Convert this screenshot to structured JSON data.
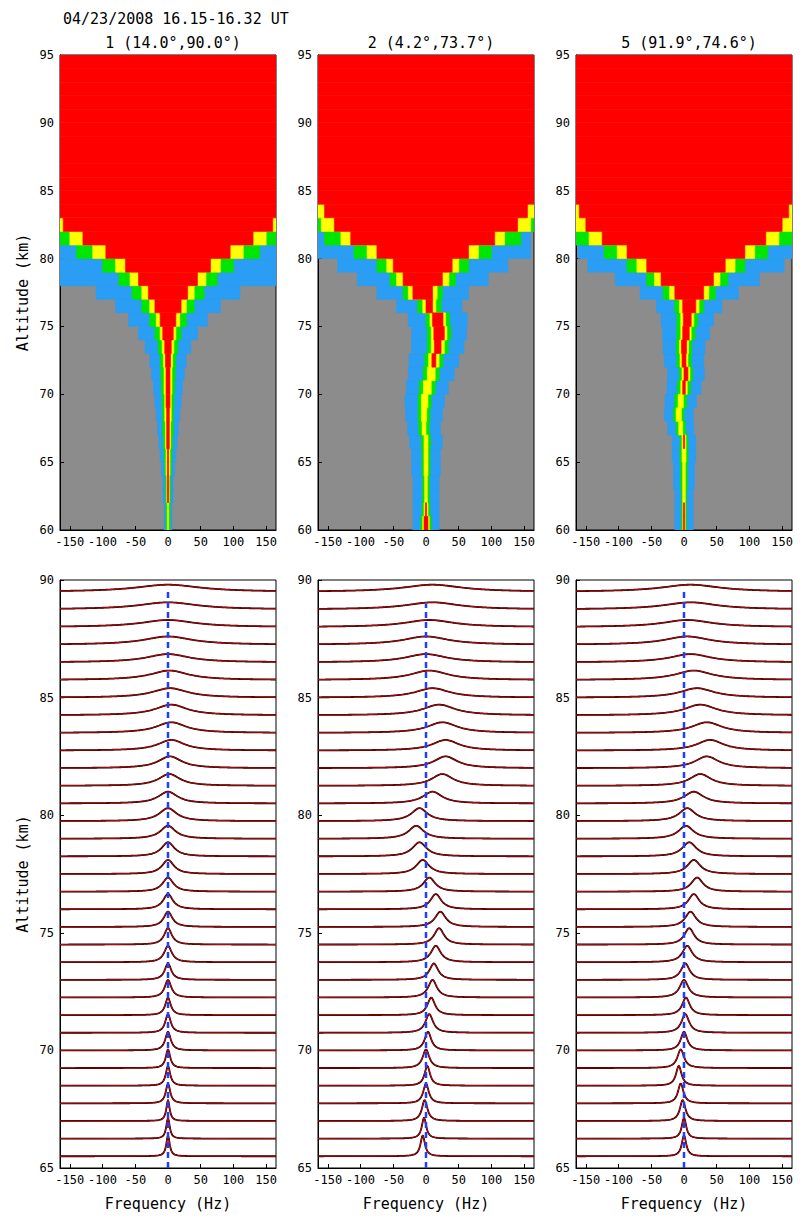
{
  "title": "04/23/2008 16.15-16.32 UT",
  "chart_data": [
    {
      "type": "heatmap",
      "title": "1 (14.0°,90.0°)",
      "ylabel": "Altitude (km)",
      "xlim": [
        -165,
        165
      ],
      "xticks": [
        -150,
        -100,
        -50,
        0,
        50,
        100,
        150
      ],
      "ylim": [
        60,
        95
      ],
      "yticks": [
        60,
        65,
        70,
        75,
        80,
        85,
        90,
        95
      ],
      "color": "#8c8c8c",
      "altitudes": [
        60.5,
        61.5,
        62.5,
        63.5,
        64.5,
        65.5,
        66.5,
        67.5,
        68.5,
        69.5,
        70.5,
        71.5,
        72.5,
        73.5,
        74.5,
        75.5,
        76.5,
        77.5,
        78.5,
        79.5,
        80.5,
        81.5,
        82.5,
        83.5,
        84.5,
        85.5,
        86.5,
        87.5,
        88.5,
        89.5,
        90.5,
        91.5,
        92.5,
        93.5,
        94.5
      ],
      "center": [
        0,
        0,
        0,
        0,
        0,
        0,
        0,
        0,
        0,
        0,
        0,
        0,
        0,
        0,
        0,
        0,
        0,
        0,
        0,
        0,
        0,
        0,
        0,
        0,
        0,
        0,
        0,
        0,
        0,
        0,
        0,
        0,
        0,
        0,
        0
      ],
      "bands": [
        {
          "color": "#2a9df4",
          "halfwidth": [
            6,
            6,
            8,
            8,
            10,
            12,
            14,
            16,
            18,
            20,
            22,
            25,
            28,
            35,
            45,
            60,
            80,
            110,
            165,
            165,
            165,
            165,
            165,
            165,
            165,
            165,
            165,
            165,
            165,
            165,
            165,
            165,
            165,
            165,
            165
          ]
        },
        {
          "color": "#00e600",
          "halfwidth": [
            3,
            3,
            4,
            4,
            5,
            6,
            7,
            8,
            8,
            9,
            10,
            11,
            12,
            15,
            20,
            28,
            40,
            55,
            75,
            100,
            140,
            165,
            165,
            165,
            165,
            165,
            165,
            165,
            165,
            165,
            165,
            165,
            165,
            165,
            165
          ]
        },
        {
          "color": "#ffff00",
          "halfwidth": [
            1,
            1,
            2,
            2,
            3,
            3,
            4,
            4,
            5,
            5,
            6,
            6,
            7,
            9,
            12,
            18,
            28,
            40,
            58,
            80,
            115,
            150,
            165,
            165,
            165,
            165,
            165,
            165,
            165,
            165,
            165,
            165,
            165,
            165,
            165
          ]
        },
        {
          "color": "#ff0000",
          "halfwidth": [
            0,
            0,
            1,
            1,
            1,
            1,
            2,
            2,
            2,
            3,
            3,
            3,
            4,
            5,
            8,
            12,
            20,
            30,
            45,
            65,
            95,
            130,
            160,
            165,
            165,
            165,
            165,
            165,
            165,
            165,
            165,
            165,
            165,
            165,
            165
          ]
        }
      ]
    },
    {
      "type": "heatmap",
      "title": "2 (4.2°,73.7°)",
      "xlim": [
        -165,
        165
      ],
      "xticks": [
        -150,
        -100,
        -50,
        0,
        50,
        100,
        150
      ],
      "ylim": [
        60,
        95
      ],
      "yticks": [
        60,
        65,
        70,
        75,
        80,
        85,
        90,
        95
      ],
      "color": "#8c8c8c",
      "altitudes": [
        60.5,
        61.5,
        62.5,
        63.5,
        64.5,
        65.5,
        66.5,
        67.5,
        68.5,
        69.5,
        70.5,
        71.5,
        72.5,
        73.5,
        74.5,
        75.5,
        76.5,
        77.5,
        78.5,
        79.5,
        80.5,
        81.5,
        82.5,
        83.5,
        84.5,
        85.5,
        86.5,
        87.5,
        88.5,
        89.5,
        90.5,
        91.5,
        92.5,
        93.5,
        94.5
      ],
      "center": [
        0,
        0,
        0,
        0,
        0,
        0,
        0,
        -3,
        -3,
        -2,
        2,
        8,
        12,
        18,
        20,
        18,
        5,
        -5,
        -5,
        -5,
        -5,
        -5,
        0,
        0,
        0,
        0,
        0,
        0,
        0,
        0,
        0,
        0,
        0,
        0,
        0
      ],
      "bands": [
        {
          "color": "#2a9df4",
          "halfwidth": [
            20,
            20,
            20,
            20,
            22,
            22,
            25,
            25,
            28,
            30,
            32,
            35,
            38,
            40,
            42,
            45,
            50,
            70,
            100,
            130,
            165,
            165,
            165,
            165,
            165,
            165,
            165,
            165,
            165,
            165,
            165,
            165,
            165,
            165,
            165
          ]
        },
        {
          "color": "#00e600",
          "halfwidth": [
            8,
            6,
            5,
            5,
            6,
            6,
            7,
            8,
            9,
            10,
            12,
            12,
            14,
            16,
            18,
            18,
            18,
            30,
            50,
            70,
            105,
            150,
            165,
            165,
            165,
            165,
            165,
            165,
            165,
            165,
            165,
            165,
            165,
            165,
            165
          ]
        },
        {
          "color": "#ffff00",
          "halfwidth": [
            5,
            3,
            2,
            2,
            3,
            3,
            3,
            3,
            4,
            5,
            6,
            6,
            8,
            10,
            12,
            12,
            10,
            22,
            40,
            55,
            85,
            125,
            160,
            165,
            165,
            165,
            165,
            165,
            165,
            165,
            165,
            165,
            165,
            165,
            165
          ]
        },
        {
          "color": "#ff0000",
          "halfwidth": [
            3,
            1,
            0,
            0,
            0,
            0,
            0,
            0,
            0,
            0,
            0,
            0,
            3,
            5,
            8,
            8,
            5,
            15,
            30,
            45,
            70,
            110,
            140,
            155,
            165,
            165,
            165,
            165,
            165,
            165,
            165,
            165,
            165,
            165,
            165
          ]
        }
      ]
    },
    {
      "type": "heatmap",
      "title": "5 (91.9°,74.6°)",
      "xlim": [
        -165,
        165
      ],
      "xticks": [
        -150,
        -100,
        -50,
        0,
        50,
        100,
        150
      ],
      "ylim": [
        60,
        95
      ],
      "yticks": [
        60,
        65,
        70,
        75,
        80,
        85,
        90,
        95
      ],
      "color": "#8c8c8c",
      "altitudes": [
        60.5,
        61.5,
        62.5,
        63.5,
        64.5,
        65.5,
        66.5,
        67.5,
        68.5,
        69.5,
        70.5,
        71.5,
        72.5,
        73.5,
        74.5,
        75.5,
        76.5,
        77.5,
        78.5,
        79.5,
        80.5,
        81.5,
        82.5,
        83.5,
        84.5,
        85.5,
        86.5,
        87.5,
        88.5,
        89.5,
        90.5,
        91.5,
        92.5,
        93.5,
        94.5
      ],
      "center": [
        0,
        0,
        0,
        0,
        0,
        0,
        0,
        -5,
        -8,
        -5,
        0,
        3,
        0,
        0,
        3,
        5,
        8,
        8,
        5,
        3,
        3,
        0,
        0,
        0,
        0,
        0,
        0,
        0,
        0,
        0,
        0,
        0,
        0,
        0,
        0
      ],
      "bands": [
        {
          "color": "#2a9df4",
          "halfwidth": [
            14,
            14,
            14,
            16,
            16,
            18,
            18,
            20,
            22,
            24,
            26,
            28,
            30,
            32,
            36,
            40,
            50,
            75,
            110,
            150,
            165,
            165,
            165,
            165,
            165,
            165,
            165,
            165,
            165,
            165,
            165,
            165,
            165,
            165,
            165
          ]
        },
        {
          "color": "#00e600",
          "halfwidth": [
            4,
            4,
            4,
            5,
            5,
            6,
            6,
            7,
            8,
            9,
            10,
            10,
            11,
            12,
            14,
            16,
            22,
            40,
            62,
            90,
            125,
            165,
            165,
            165,
            165,
            165,
            165,
            165,
            165,
            165,
            165,
            165,
            165,
            165,
            165
          ]
        },
        {
          "color": "#ffff00",
          "halfwidth": [
            2,
            2,
            2,
            2,
            2,
            3,
            3,
            3,
            4,
            4,
            5,
            6,
            6,
            7,
            8,
            10,
            15,
            30,
            50,
            75,
            105,
            145,
            165,
            165,
            165,
            165,
            165,
            165,
            165,
            165,
            165,
            165,
            165,
            165,
            165
          ]
        },
        {
          "color": "#ff0000",
          "halfwidth": [
            1,
            1,
            0,
            0,
            0,
            0,
            1,
            0,
            0,
            0,
            2,
            3,
            3,
            4,
            5,
            6,
            10,
            22,
            40,
            60,
            90,
            125,
            150,
            160,
            165,
            165,
            165,
            165,
            165,
            165,
            165,
            165,
            165,
            165,
            165
          ]
        }
      ]
    },
    {
      "type": "line",
      "ylabel": "Altitude (km)",
      "xlabel": "Frequency (Hz)",
      "xlim": [
        -165,
        165
      ],
      "xticks": [
        -150,
        -100,
        -50,
        0,
        50,
        100,
        150
      ],
      "ylim": [
        65,
        90
      ],
      "yticks": [
        65,
        70,
        75,
        80,
        85,
        90
      ],
      "color": "#e00000",
      "altitudes": [
        65.5,
        66.25,
        67,
        67.75,
        68.5,
        69.25,
        70,
        70.75,
        71.5,
        72.25,
        73,
        73.75,
        74.5,
        75.25,
        76,
        76.75,
        77.5,
        78.25,
        79,
        79.75,
        80.5,
        81.25,
        82,
        82.75,
        83.5,
        84.25,
        85,
        85.75,
        86.5,
        87.25,
        88,
        88.75,
        89.5
      ],
      "doppler": [
        0,
        0,
        0,
        0,
        0,
        0,
        0,
        0,
        0,
        0,
        0,
        0,
        0,
        0,
        0,
        0,
        0,
        0,
        0,
        0,
        0,
        2,
        3,
        5,
        5,
        5,
        3,
        2,
        0,
        0,
        0,
        0,
        0
      ],
      "width": [
        3,
        3,
        3,
        4,
        4,
        4,
        5,
        5,
        5,
        6,
        6,
        7,
        7,
        8,
        9,
        10,
        11,
        12,
        14,
        16,
        18,
        20,
        22,
        25,
        28,
        30,
        33,
        36,
        40,
        45,
        50,
        55,
        60
      ],
      "peak": [
        0.9,
        0.9,
        0.9,
        0.85,
        0.85,
        0.8,
        0.8,
        0.8,
        0.75,
        0.75,
        0.7,
        0.7,
        0.7,
        0.65,
        0.65,
        0.6,
        0.6,
        0.6,
        0.55,
        0.55,
        0.5,
        0.5,
        0.5,
        0.45,
        0.45,
        0.45,
        0.4,
        0.4,
        0.35,
        0.35,
        0.3,
        0.3,
        0.3
      ],
      "reference_line": {
        "x": 0,
        "y": [
          65,
          89.5
        ],
        "color": "#1f3fff",
        "line_style": "dashed"
      }
    },
    {
      "type": "line",
      "xlabel": "Frequency (Hz)",
      "xlim": [
        -165,
        165
      ],
      "xticks": [
        -150,
        -100,
        -50,
        0,
        50,
        100,
        150
      ],
      "ylim": [
        65,
        90
      ],
      "yticks": [
        65,
        70,
        75,
        80,
        85,
        90
      ],
      "color": "#e00000",
      "altitudes": [
        65.5,
        66.25,
        67,
        67.75,
        68.5,
        69.25,
        70,
        70.75,
        71.5,
        72.25,
        73,
        73.75,
        74.5,
        75.25,
        76,
        76.75,
        77.5,
        78.25,
        79,
        79.75,
        80.5,
        81.25,
        82,
        82.75,
        83.5,
        84.25,
        85,
        85.75,
        86.5,
        87.25,
        88,
        88.75,
        89.5
      ],
      "doppler": [
        -5,
        -3,
        -2,
        0,
        2,
        0,
        3,
        5,
        8,
        10,
        12,
        15,
        20,
        22,
        15,
        5,
        -5,
        -10,
        -15,
        -10,
        10,
        25,
        30,
        30,
        25,
        20,
        10,
        5,
        0,
        0,
        5,
        10,
        10
      ],
      "width": [
        4,
        4,
        5,
        5,
        5,
        6,
        6,
        7,
        7,
        8,
        8,
        9,
        9,
        10,
        10,
        11,
        12,
        13,
        14,
        15,
        18,
        20,
        22,
        25,
        28,
        30,
        32,
        35,
        38,
        42,
        46,
        50,
        55
      ],
      "peak": [
        0.9,
        0.9,
        0.9,
        0.85,
        0.85,
        0.8,
        0.8,
        0.8,
        0.75,
        0.75,
        0.7,
        0.7,
        0.7,
        0.65,
        0.65,
        0.6,
        0.6,
        0.6,
        0.55,
        0.55,
        0.5,
        0.5,
        0.5,
        0.45,
        0.45,
        0.45,
        0.4,
        0.4,
        0.35,
        0.35,
        0.3,
        0.3,
        0.3
      ],
      "reference_line": {
        "x": 0,
        "y": [
          65,
          89
        ],
        "color": "#1f3fff",
        "line_style": "dashed"
      }
    },
    {
      "type": "line",
      "xlabel": "Frequency (Hz)",
      "xlim": [
        -165,
        165
      ],
      "xticks": [
        -150,
        -100,
        -50,
        0,
        50,
        100,
        150
      ],
      "ylim": [
        65,
        90
      ],
      "yticks": [
        65,
        70,
        75,
        80,
        85,
        90
      ],
      "color": "#e00000",
      "altitudes": [
        65.5,
        66.25,
        67,
        67.75,
        68.5,
        69.25,
        70,
        70.75,
        71.5,
        72.25,
        73,
        73.75,
        74.5,
        75.25,
        76,
        76.75,
        77.5,
        78.25,
        79,
        79.75,
        80.5,
        81.25,
        82,
        82.75,
        83.5,
        84.25,
        85,
        85.75,
        86.5,
        87.25,
        88,
        88.75,
        89.5
      ],
      "doppler": [
        0,
        0,
        -2,
        -5,
        -8,
        -5,
        0,
        2,
        3,
        0,
        2,
        5,
        8,
        10,
        15,
        20,
        15,
        8,
        3,
        5,
        15,
        25,
        35,
        40,
        35,
        25,
        20,
        15,
        10,
        5,
        5,
        10,
        10
      ],
      "width": [
        4,
        4,
        5,
        5,
        5,
        6,
        6,
        7,
        7,
        8,
        8,
        9,
        9,
        10,
        10,
        11,
        12,
        13,
        14,
        15,
        18,
        20,
        22,
        25,
        28,
        30,
        32,
        35,
        38,
        42,
        46,
        50,
        55
      ],
      "peak": [
        0.9,
        0.9,
        0.9,
        0.85,
        0.85,
        0.8,
        0.8,
        0.8,
        0.75,
        0.75,
        0.7,
        0.7,
        0.7,
        0.65,
        0.65,
        0.6,
        0.6,
        0.6,
        0.55,
        0.55,
        0.5,
        0.5,
        0.5,
        0.45,
        0.45,
        0.45,
        0.4,
        0.4,
        0.35,
        0.35,
        0.3,
        0.3,
        0.3
      ],
      "reference_line": {
        "x": 0,
        "y": [
          65,
          89.5
        ],
        "color": "#1f3fff",
        "line_style": "dashed"
      }
    }
  ]
}
